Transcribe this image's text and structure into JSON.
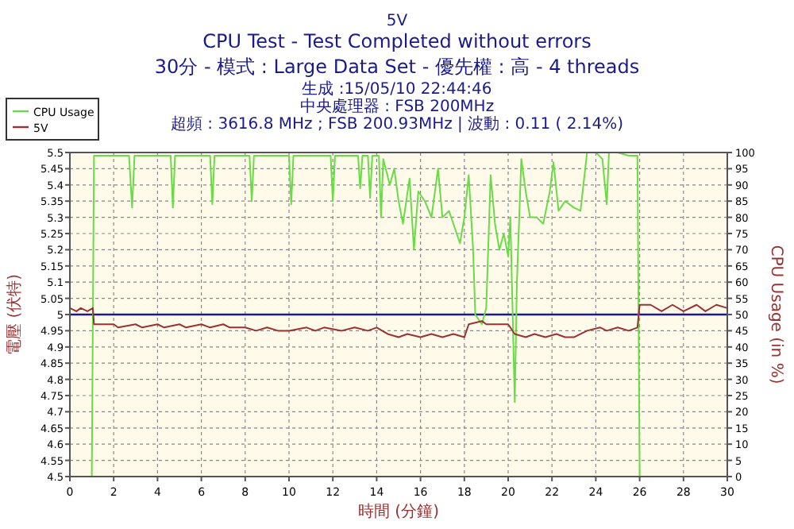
{
  "chart_data": {
    "type": "line",
    "title": "5V",
    "subtitle": "CPU Test - Test Completed without errors",
    "annotations": [
      "30分 - 模式 : Large Data Set - 優先權 : 高 - 4 threads",
      "生成 :15/05/10 22:44:46",
      "中央處理器 : FSB 200MHz",
      "超頻 : 3616.8 MHz ; FSB 200.93MHz | 波動 : 0.11 ( 2.14%)"
    ],
    "xlabel": "時間 (分鐘)",
    "ylabel": "電壓 (伏特)",
    "y2label": "CPU Usage (in %)",
    "xlim": [
      0,
      30
    ],
    "xticks": [
      0,
      2,
      4,
      6,
      8,
      10,
      12,
      14,
      16,
      18,
      20,
      22,
      24,
      26,
      28,
      30
    ],
    "ylim": [
      4.5,
      5.5
    ],
    "yticks": [
      4.5,
      4.55,
      4.6,
      4.65,
      4.7,
      4.75,
      4.8,
      4.85,
      4.9,
      4.95,
      5,
      5.05,
      5.1,
      5.15,
      5.2,
      5.25,
      5.3,
      5.35,
      5.4,
      5.45,
      5.5
    ],
    "y2lim": [
      0,
      100
    ],
    "y2ticks": [
      0,
      5,
      10,
      15,
      20,
      25,
      30,
      35,
      40,
      45,
      50,
      55,
      60,
      65,
      70,
      75,
      80,
      85,
      90,
      95,
      100
    ],
    "grid": true,
    "legend": "top left",
    "line_style": "solid",
    "ref_lines": [
      {
        "axis": "y",
        "value": 5,
        "color": "#1a1a8c"
      }
    ],
    "series": [
      {
        "name": "CPU Usage",
        "color": "#66dd44",
        "axis": "y2",
        "x": [
          1,
          1.1,
          2.7,
          2.84,
          2.95,
          4.6,
          4.7,
          4.8,
          6.4,
          6.5,
          6.6,
          8.2,
          8.3,
          8.4,
          10.0,
          10.1,
          10.2,
          11.9,
          12.0,
          12.1,
          13.15,
          13.25,
          13.35,
          13.6,
          13.7,
          13.8,
          14.1,
          14.2,
          14.3,
          14.6,
          14.8,
          15.0,
          15.2,
          15.5,
          15.7,
          15.9,
          16.2,
          16.5,
          16.8,
          17.0,
          17.3,
          17.5,
          17.8,
          18.0,
          18.2,
          18.4,
          18.5,
          18.8,
          19.0,
          19.2,
          19.4,
          19.6,
          19.8,
          20.0,
          20.1,
          20.3,
          20.4,
          20.6,
          20.8,
          21.0,
          21.3,
          21.6,
          21.9,
          22.07,
          22.3,
          22.6,
          23.0,
          23.3,
          23.6,
          24.0,
          24.3,
          24.5,
          24.6,
          25.0,
          25.5,
          25.9,
          26.0
        ],
        "values": [
          0,
          99,
          99,
          83,
          99,
          99,
          83,
          99,
          99,
          84,
          99,
          99,
          85,
          99,
          99,
          84,
          99,
          99,
          85,
          99,
          99,
          89,
          99,
          99,
          86,
          99,
          99,
          80,
          98,
          90,
          95,
          85,
          78,
          92,
          70,
          88,
          85,
          80,
          95,
          80,
          82,
          78,
          72,
          80,
          93,
          70,
          50,
          47,
          52,
          93,
          78,
          70,
          75,
          68,
          80,
          23,
          60,
          98,
          88,
          80,
          80,
          78,
          88,
          97,
          82,
          85,
          83,
          82,
          100,
          100,
          98,
          84,
          100,
          100,
          99,
          99,
          0
        ]
      },
      {
        "name": "5V",
        "color": "#993333",
        "x": [
          0,
          0.3,
          0.5,
          0.8,
          1.05,
          1.1,
          2,
          2.2,
          3,
          3.3,
          4,
          4.3,
          5,
          5.3,
          6,
          6.4,
          7,
          7.3,
          8,
          8.5,
          9,
          9.5,
          10,
          10.8,
          11.2,
          11.6,
          12.4,
          13,
          13.6,
          14,
          14.5,
          15,
          15.4,
          16,
          16.5,
          17,
          17.5,
          18,
          18.2,
          18.8,
          19,
          19.5,
          20,
          20.3,
          20.8,
          21.2,
          21.7,
          22.2,
          22.6,
          23,
          23.6,
          24.2,
          24.5,
          25,
          25.5,
          25.9,
          26.0,
          26.5,
          27,
          27.5,
          28,
          28.6,
          29,
          29.5,
          30
        ],
        "values": [
          5.02,
          5.01,
          5.02,
          5.01,
          5.02,
          4.97,
          4.97,
          4.96,
          4.97,
          4.96,
          4.97,
          4.96,
          4.97,
          4.96,
          4.97,
          4.96,
          4.97,
          4.96,
          4.96,
          4.95,
          4.96,
          4.95,
          4.95,
          4.96,
          4.95,
          4.96,
          4.95,
          4.96,
          4.95,
          4.96,
          4.94,
          4.93,
          4.94,
          4.93,
          4.94,
          4.93,
          4.94,
          4.93,
          4.97,
          4.98,
          4.97,
          4.97,
          4.97,
          4.94,
          4.93,
          4.94,
          4.93,
          4.94,
          4.93,
          4.93,
          4.95,
          4.96,
          4.95,
          4.96,
          4.95,
          4.96,
          5.03,
          5.03,
          5.01,
          5.03,
          5.01,
          5.03,
          5.01,
          5.03,
          5.02
        ]
      }
    ]
  }
}
